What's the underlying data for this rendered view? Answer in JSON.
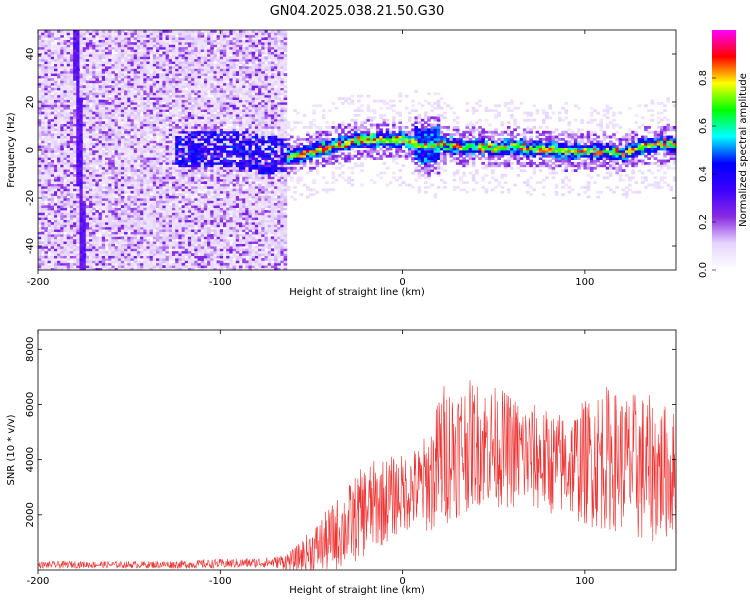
{
  "chart_data": [
    {
      "type": "heatmap",
      "title": "GN04.2025.038.21.50.G30",
      "xlabel": "Height of straight line (km)",
      "ylabel": "Frequency (Hz)",
      "xlim": [
        -200,
        150
      ],
      "ylim": [
        -50,
        50
      ],
      "x_ticks": [
        -200,
        -100,
        0,
        100
      ],
      "y_ticks": [
        -40,
        -20,
        0,
        20,
        40
      ],
      "colorbar": {
        "label": "Normalized spectral amplitude",
        "range": [
          0,
          1
        ],
        "ticks": [
          "0.0",
          "0.2",
          "0.4",
          "0.6",
          "0.8"
        ],
        "colors": [
          "#ffffff",
          "#e6d5ff",
          "#8a2be2",
          "#3c00ff",
          "#0000ff",
          "#00ffff",
          "#00ff00",
          "#ffff00",
          "#ff0000",
          "#ff00ff"
        ]
      },
      "ridge": {
        "x": [
          -120,
          -100,
          -90,
          -80,
          -70,
          -60,
          -50,
          -40,
          -30,
          -20,
          -10,
          0,
          10,
          20,
          30,
          40,
          50,
          60,
          70,
          80,
          90,
          100,
          110,
          120,
          130,
          140,
          150
        ],
        "freq": [
          0,
          0,
          0,
          -2,
          -3,
          -3,
          -1,
          1,
          3,
          4,
          4,
          4,
          1,
          2,
          1,
          1,
          0,
          1,
          0,
          0,
          -1,
          -1,
          -1,
          -2,
          1,
          2,
          2
        ]
      },
      "streak": {
        "x_top": -180,
        "x_bottom": -176
      }
    },
    {
      "type": "line",
      "title": "",
      "xlabel": "Height of straight line (km)",
      "ylabel": "SNR (10 * v/v)",
      "xlim": [
        -200,
        150
      ],
      "ylim": [
        0,
        8700
      ],
      "x_ticks": [
        -200,
        -100,
        0,
        100
      ],
      "y_ticks": [
        2000,
        4000,
        6000,
        8000
      ],
      "series": [
        {
          "color": "#ee3333",
          "envelope": {
            "x": [
              -200,
              -180,
              -150,
              -120,
              -100,
              -80,
              -70,
              -60,
              -50,
              -40,
              -30,
              -20,
              -10,
              0,
              10,
              18,
              20,
              25,
              30,
              40,
              50,
              60,
              70,
              80,
              90,
              100,
              110,
              120,
              130,
              140,
              150
            ],
            "mean": [
              180,
              200,
              190,
              200,
              230,
              260,
              280,
              350,
              700,
              1100,
              1600,
              2200,
              2500,
              2800,
              3000,
              3500,
              4000,
              4300,
              4400,
              4600,
              4500,
              4300,
              4100,
              3900,
              3800,
              3900,
              4100,
              3900,
              3700,
              3600,
              3500
            ],
            "spread": [
              120,
              130,
              120,
              150,
              170,
              180,
              200,
              400,
              800,
              1200,
              1500,
              1700,
              1600,
              1400,
              1600,
              2200,
              2800,
              2600,
              2500,
              2300,
              2200,
              2100,
              2000,
              1900,
              1900,
              2300,
              2700,
              2500,
              2800,
              2600,
              2300
            ]
          }
        }
      ]
    }
  ]
}
